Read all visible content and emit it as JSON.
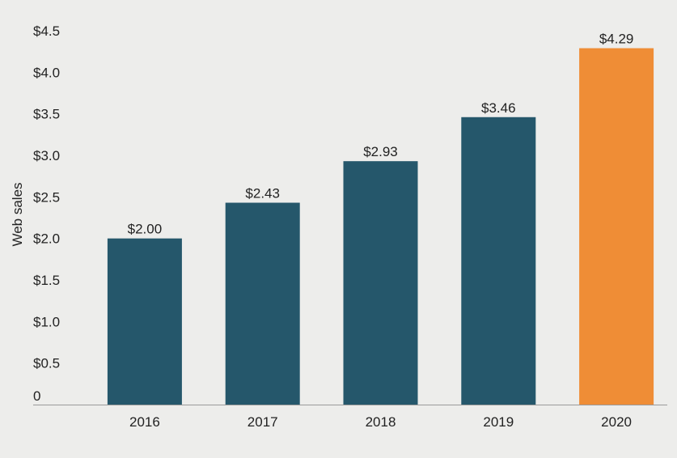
{
  "chart_data": {
    "type": "bar",
    "title": "",
    "xlabel": "",
    "ylabel": "Web sales",
    "categories": [
      "2016",
      "2017",
      "2018",
      "2019",
      "2020"
    ],
    "values": [
      2.0,
      2.43,
      2.93,
      3.46,
      4.29
    ],
    "value_labels": [
      "$2.00",
      "$2.43",
      "$2.93",
      "$3.46",
      "$4.29"
    ],
    "ylim": [
      0,
      4.5
    ],
    "yticks": [
      0,
      0.5,
      1.0,
      1.5,
      2.0,
      2.5,
      3.0,
      3.5,
      4.0,
      4.5
    ],
    "ytick_labels": [
      "0",
      "$0.5",
      "$1.0",
      "$1.5",
      "$2.0",
      "$2.5",
      "$3.0",
      "$3.5",
      "$4.0",
      "$4.5"
    ],
    "grid": false,
    "legend": "none",
    "colors": {
      "bar": "#25576b",
      "highlight_bar": "#ef8d36",
      "axis": "#9a9a9a",
      "background": "#ededeb"
    },
    "highlight_index": 4
  }
}
